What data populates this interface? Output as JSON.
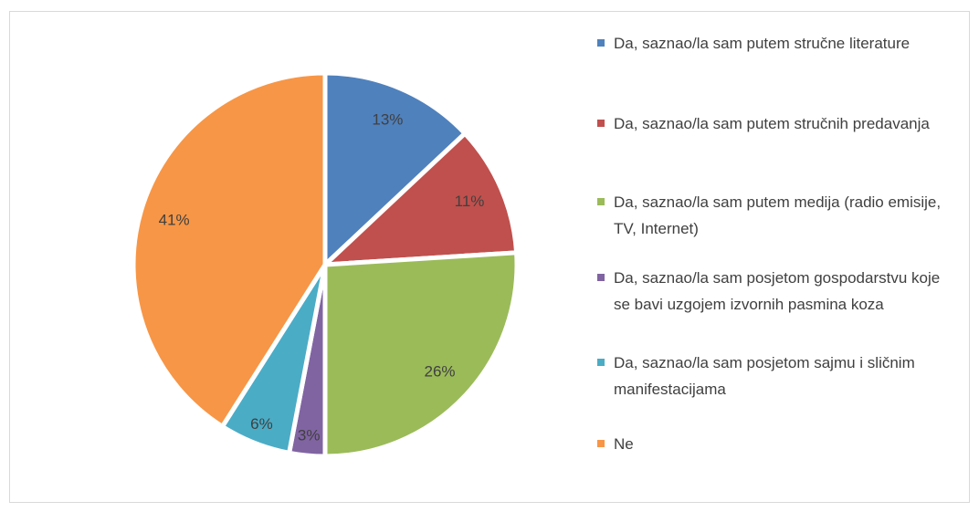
{
  "chart_data": {
    "type": "pie",
    "categories": [
      "Da, saznao/la sam putem stručne literature",
      "Da, saznao/la sam putem stručnih predavanja",
      "Da, saznao/la sam putem medija (radio emisije, TV, Internet)",
      "Da, saznao/la sam posjetom gospodarstvu koje se bavi uzgojem izvornih pasmina koza",
      "Da, saznao/la sam posjetom sajmu i sličnim manifestacijama",
      "Ne"
    ],
    "values": [
      13,
      11,
      26,
      3,
      6,
      41
    ],
    "value_labels": [
      "13%",
      "11%",
      "26%",
      "3%",
      "6%",
      "41%"
    ],
    "colors": [
      "#4f81bd",
      "#c0504d",
      "#9bbb59",
      "#8064a2",
      "#4bacc6",
      "#f79646"
    ],
    "legend": "right"
  }
}
